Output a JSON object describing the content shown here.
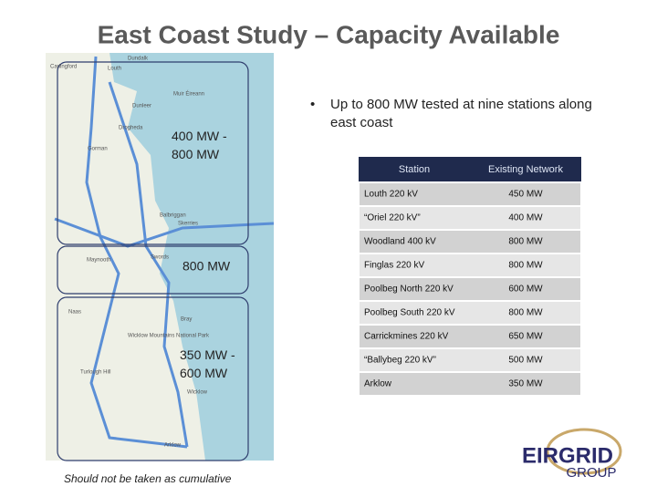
{
  "title": "East Coast Study – Capacity Available",
  "map": {
    "regions": [
      "400 MW - 800 MW",
      "800 MW",
      "350 MW - 600 MW"
    ],
    "places": [
      "Carlingford",
      "Dundalk",
      "Louth",
      "Muir Éireann",
      "Dunleer",
      "Drogheda",
      "Gorman",
      "Balbriggan",
      "Skerries",
      "Swords",
      "Maynooth",
      "Naas",
      "Bray",
      "Wicklow Mountains National Park",
      "Turlough Hill",
      "Wicklow",
      "Arklow"
    ]
  },
  "bullet": "Up to 800 MW tested at nine stations along east coast",
  "table": {
    "header": [
      "Station",
      "Existing Network"
    ],
    "rows": [
      [
        "Louth 220 kV",
        "450 MW"
      ],
      [
        "“Oriel 220 kV”",
        "400 MW"
      ],
      [
        "Woodland 400 kV",
        "800 MW"
      ],
      [
        "Finglas 220 kV",
        "800 MW"
      ],
      [
        "Poolbeg North 220 kV",
        "600 MW"
      ],
      [
        "Poolbeg South 220 kV",
        "800 MW"
      ],
      [
        "Carrickmines 220 kV",
        "650 MW"
      ],
      [
        "“Ballybeg 220 kV”",
        "500 MW"
      ],
      [
        "Arklow",
        "350 MW"
      ]
    ]
  },
  "footnote": "Should not be taken as cumulative",
  "logo": {
    "name": "EIRGRID",
    "sub": "GROUP"
  }
}
